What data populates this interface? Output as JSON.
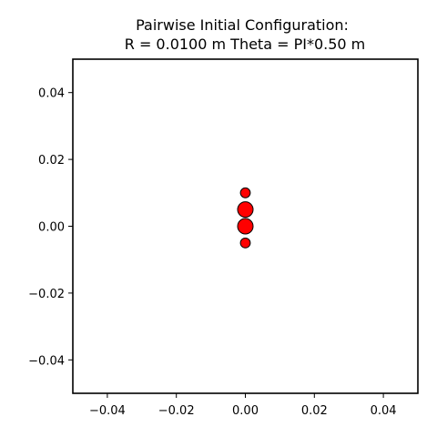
{
  "chart_data": {
    "type": "scatter",
    "title": "Pairwise Initial Configuration:",
    "subtitle": "R = 0.0100 m Theta = PI*0.50 m",
    "xlabel": "",
    "ylabel": "",
    "xlim": [
      -0.05,
      0.05
    ],
    "ylim": [
      -0.05,
      0.05
    ],
    "xticks": [
      -0.04,
      -0.02,
      0.0,
      0.02,
      0.04
    ],
    "yticks": [
      -0.04,
      -0.02,
      0.0,
      0.02,
      0.04
    ],
    "xtick_labels": [
      "−0.04",
      "−0.02",
      "0.00",
      "0.02",
      "0.04"
    ],
    "ytick_labels": [
      "−0.04",
      "−0.02",
      "0.00",
      "0.02",
      "0.04"
    ],
    "grid": false,
    "marker_color": "#ff0000",
    "marker_edge_color": "#000000",
    "series": [
      {
        "x": [
          0.0,
          0.0
        ],
        "y": [
          0.005,
          0.0
        ],
        "marker_size": "large"
      },
      {
        "x": [
          0.0,
          0.0
        ],
        "y": [
          0.01,
          -0.005
        ],
        "marker_size": "small"
      }
    ]
  }
}
